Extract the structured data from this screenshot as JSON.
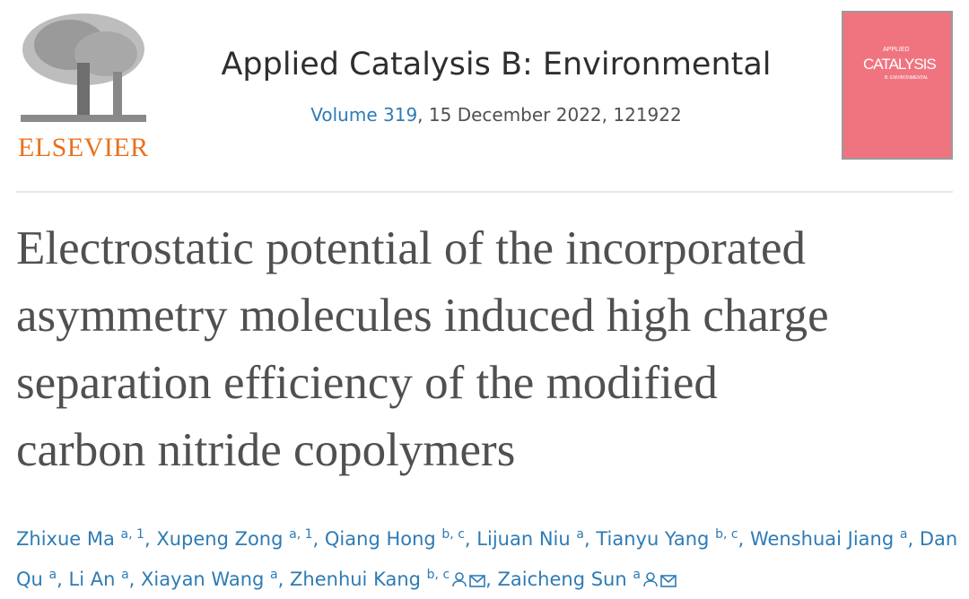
{
  "header": {
    "publisher": "ELSEVIER",
    "journal": "Applied Catalysis B: Environmental",
    "volume": "Volume 319",
    "issue_info": ", 15 December 2022, 121922",
    "cover": {
      "line1": "APPLIED",
      "line2": "CATALYSIS",
      "line3": "B: ENVIRONMENTAL"
    }
  },
  "article": {
    "title_lines": [
      "Electrostatic potential of the incorporated",
      "asymmetry molecules induced high charge",
      "separation efficiency of the modified",
      "carbon nitride copolymers"
    ],
    "separator": ",",
    "authors": [
      {
        "name": "Zhixue Ma",
        "affiliations": "a, 1"
      },
      {
        "name": "Xupeng Zong",
        "affiliations": "a, 1"
      },
      {
        "name": "Qiang Hong",
        "affiliations": "b, c"
      },
      {
        "name": "Lijuan Niu",
        "affiliations": "a"
      },
      {
        "name": "Tianyu Yang",
        "affiliations": "b, c"
      },
      {
        "name": "Wenshuai Jiang",
        "affiliations": "a"
      },
      {
        "name": "Dan Qu",
        "affiliations": "a"
      },
      {
        "name": "Li An",
        "affiliations": "a"
      },
      {
        "name": "Xiayan Wang",
        "affiliations": "a"
      },
      {
        "name": "Zhenhui Kang",
        "affiliations": "b, c",
        "corresponding": true
      },
      {
        "name": "Zaicheng Sun",
        "affiliations": "a",
        "corresponding": true
      }
    ]
  }
}
